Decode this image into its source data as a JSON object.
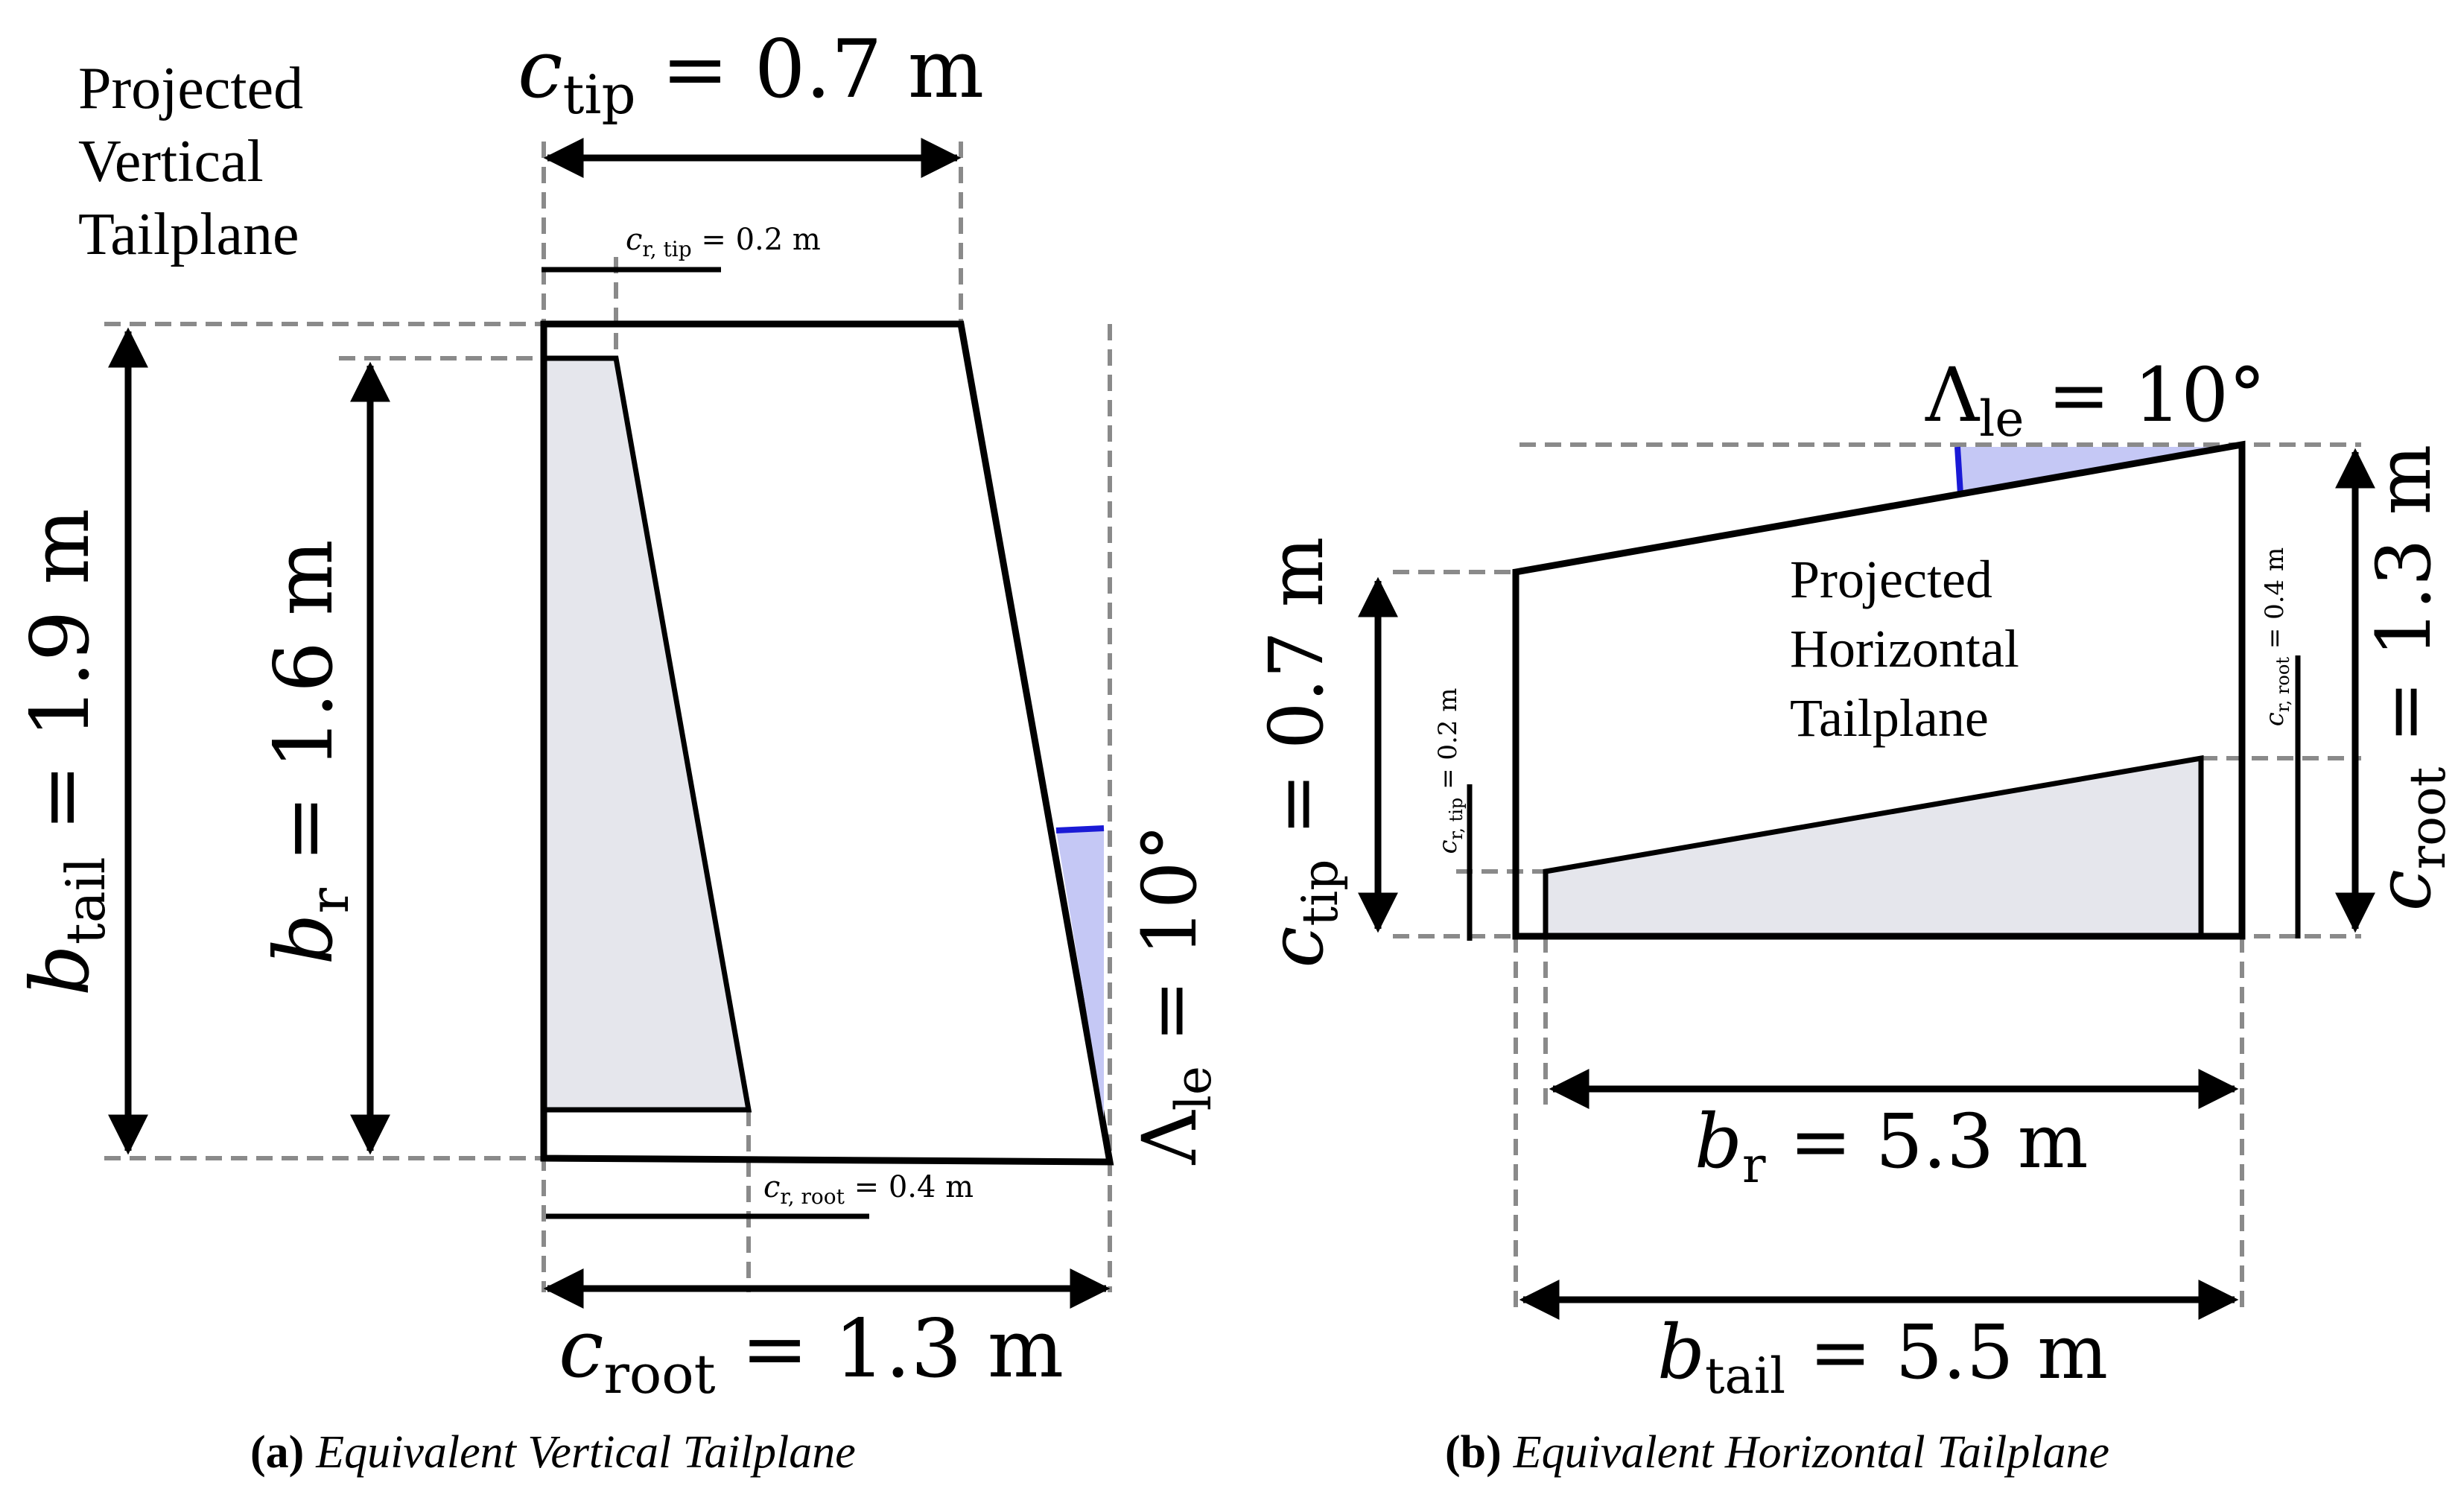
{
  "vertical": {
    "title_lines": [
      "Projected",
      "Vertical",
      "Tailplane"
    ],
    "c_tip": {
      "sym": "c",
      "sub": "tip",
      "rest": " = 0.7 m"
    },
    "cr_tip": {
      "sym": "c",
      "sub": "r, tip",
      "rest": " = 0.2 m"
    },
    "b_tail": {
      "sym": "b",
      "sub": "tail",
      "rest": " = 1.9 m"
    },
    "b_r": {
      "sym": "b",
      "sub": "r",
      "rest": " = 1.6 m"
    },
    "lambda_le": {
      "sym": "Λ",
      "sub": "le",
      "rest": " = 10°"
    },
    "cr_root": {
      "sym": "c",
      "sub": "r, root",
      "rest": " = 0.4 m"
    },
    "c_root": {
      "sym": "c",
      "sub": "root",
      "rest": " = 1.3 m"
    },
    "caption_tag": "(a)",
    "caption_text": "Equivalent Vertical Tailplane"
  },
  "horizontal": {
    "title_lines": [
      "Projected",
      "Horizontal",
      "Tailplane"
    ],
    "lambda_le": {
      "sym": "Λ",
      "sub": "le",
      "rest": " = 10°"
    },
    "c_tip": {
      "sym": "c",
      "sub": "tip",
      "rest": " = 0.7 m"
    },
    "cr_tip": {
      "sym": "c",
      "sub": "r, tip",
      "rest": " = 0.2 m"
    },
    "cr_root": {
      "sym": "c",
      "sub": "r, root",
      "rest": " = 0.4 m"
    },
    "c_root": {
      "sym": "c",
      "sub": "root",
      "rest": " = 1.3 m"
    },
    "b_r": {
      "sym": "b",
      "sub": "r",
      "rest": " = 5.3 m"
    },
    "b_tail": {
      "sym": "b",
      "sub": "tail",
      "rest": " = 5.5 m"
    },
    "caption_tag": "(b)",
    "caption_text": "Equivalent Horizontal Tailplane"
  },
  "colors": {
    "rudder_fill": "#e5e6ec",
    "sweep_fill": "#c5c8f5",
    "sweep_line": "#1a1ad6",
    "dash": "#8a8a8a"
  }
}
